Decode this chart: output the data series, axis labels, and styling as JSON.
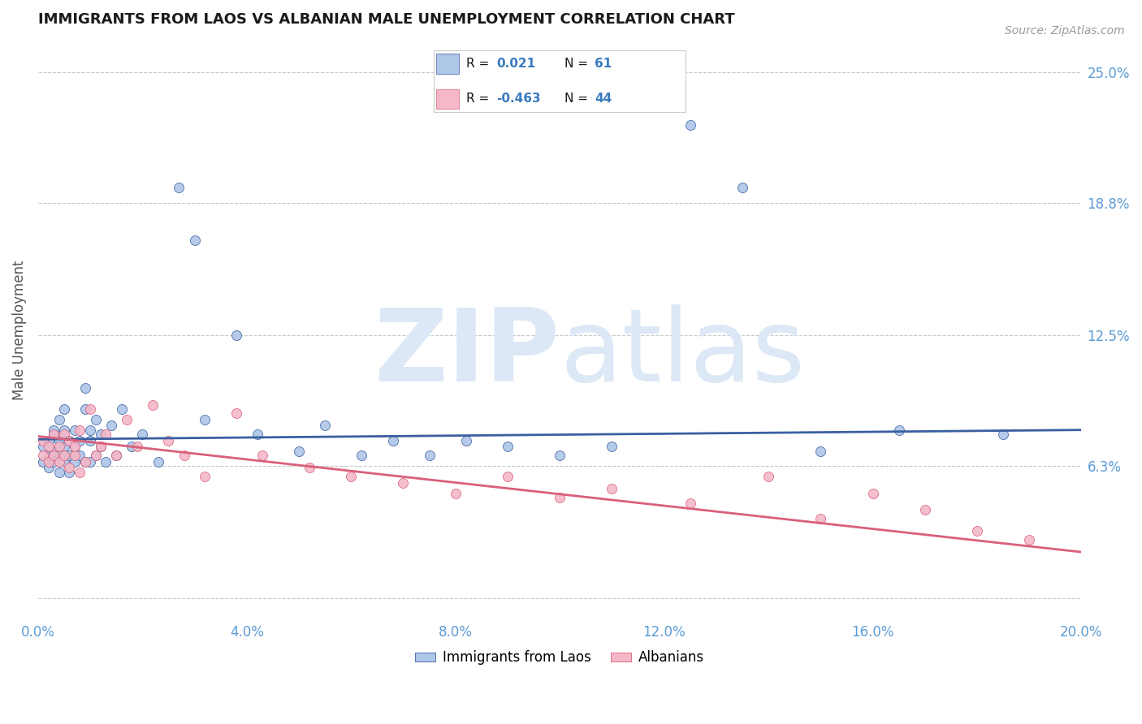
{
  "title": "IMMIGRANTS FROM LAOS VS ALBANIAN MALE UNEMPLOYMENT CORRELATION CHART",
  "source": "Source: ZipAtlas.com",
  "ylabel": "Male Unemployment",
  "xlim": [
    0.0,
    0.2
  ],
  "ylim": [
    -0.01,
    0.265
  ],
  "yticks": [
    0.063,
    0.125,
    0.188,
    0.25
  ],
  "ytick_labels": [
    "6.3%",
    "12.5%",
    "18.8%",
    "25.0%"
  ],
  "blue_R": 0.021,
  "blue_N": 61,
  "pink_R": -0.463,
  "pink_N": 44,
  "blue_color": "#aec6e8",
  "pink_color": "#f4b8c8",
  "blue_line_color": "#3a5fa0",
  "pink_line_color": "#d9607a",
  "title_color": "#1a1a1a",
  "axis_color": "#5b9bd5",
  "watermark_color": "#dce8f5",
  "background_color": "#ffffff",
  "grid_color": "#b0b0b0",
  "legend_text_color": "#1a1a1a",
  "legend_value_color": "#3a7bbf",
  "blue_x": [
    0.001,
    0.001,
    0.002,
    0.002,
    0.002,
    0.003,
    0.003,
    0.003,
    0.003,
    0.004,
    0.004,
    0.004,
    0.004,
    0.005,
    0.005,
    0.005,
    0.005,
    0.006,
    0.006,
    0.006,
    0.007,
    0.007,
    0.007,
    0.008,
    0.008,
    0.009,
    0.009,
    0.009,
    0.01,
    0.01,
    0.01,
    0.011,
    0.011,
    0.012,
    0.012,
    0.013,
    0.014,
    0.015,
    0.016,
    0.018,
    0.02,
    0.023,
    0.027,
    0.03,
    0.032,
    0.038,
    0.042,
    0.05,
    0.055,
    0.062,
    0.068,
    0.075,
    0.082,
    0.09,
    0.1,
    0.11,
    0.125,
    0.135,
    0.15,
    0.165,
    0.185
  ],
  "blue_y": [
    0.065,
    0.072,
    0.068,
    0.075,
    0.062,
    0.07,
    0.078,
    0.065,
    0.08,
    0.068,
    0.075,
    0.06,
    0.085,
    0.072,
    0.065,
    0.08,
    0.09,
    0.068,
    0.075,
    0.06,
    0.072,
    0.08,
    0.065,
    0.075,
    0.068,
    0.1,
    0.065,
    0.09,
    0.075,
    0.065,
    0.08,
    0.068,
    0.085,
    0.072,
    0.078,
    0.065,
    0.082,
    0.068,
    0.09,
    0.072,
    0.078,
    0.065,
    0.195,
    0.17,
    0.085,
    0.125,
    0.078,
    0.07,
    0.082,
    0.068,
    0.075,
    0.068,
    0.075,
    0.072,
    0.068,
    0.072,
    0.225,
    0.195,
    0.07,
    0.08,
    0.078
  ],
  "pink_x": [
    0.001,
    0.001,
    0.002,
    0.002,
    0.003,
    0.003,
    0.004,
    0.004,
    0.005,
    0.005,
    0.006,
    0.006,
    0.007,
    0.007,
    0.008,
    0.008,
    0.009,
    0.01,
    0.011,
    0.012,
    0.013,
    0.015,
    0.017,
    0.019,
    0.022,
    0.025,
    0.028,
    0.032,
    0.038,
    0.043,
    0.052,
    0.06,
    0.07,
    0.08,
    0.09,
    0.1,
    0.11,
    0.125,
    0.14,
    0.15,
    0.16,
    0.17,
    0.18,
    0.19
  ],
  "pink_y": [
    0.068,
    0.075,
    0.065,
    0.072,
    0.068,
    0.078,
    0.065,
    0.072,
    0.068,
    0.078,
    0.062,
    0.075,
    0.068,
    0.072,
    0.06,
    0.08,
    0.065,
    0.09,
    0.068,
    0.072,
    0.078,
    0.068,
    0.085,
    0.072,
    0.092,
    0.075,
    0.068,
    0.058,
    0.088,
    0.068,
    0.062,
    0.058,
    0.055,
    0.05,
    0.058,
    0.048,
    0.052,
    0.045,
    0.058,
    0.038,
    0.05,
    0.042,
    0.032,
    0.028
  ],
  "blue_trend_x": [
    0.0,
    0.2
  ],
  "blue_trend_y": [
    0.0755,
    0.08
  ],
  "pink_trend_x": [
    0.0,
    0.2
  ],
  "pink_trend_y": [
    0.077,
    0.022
  ]
}
